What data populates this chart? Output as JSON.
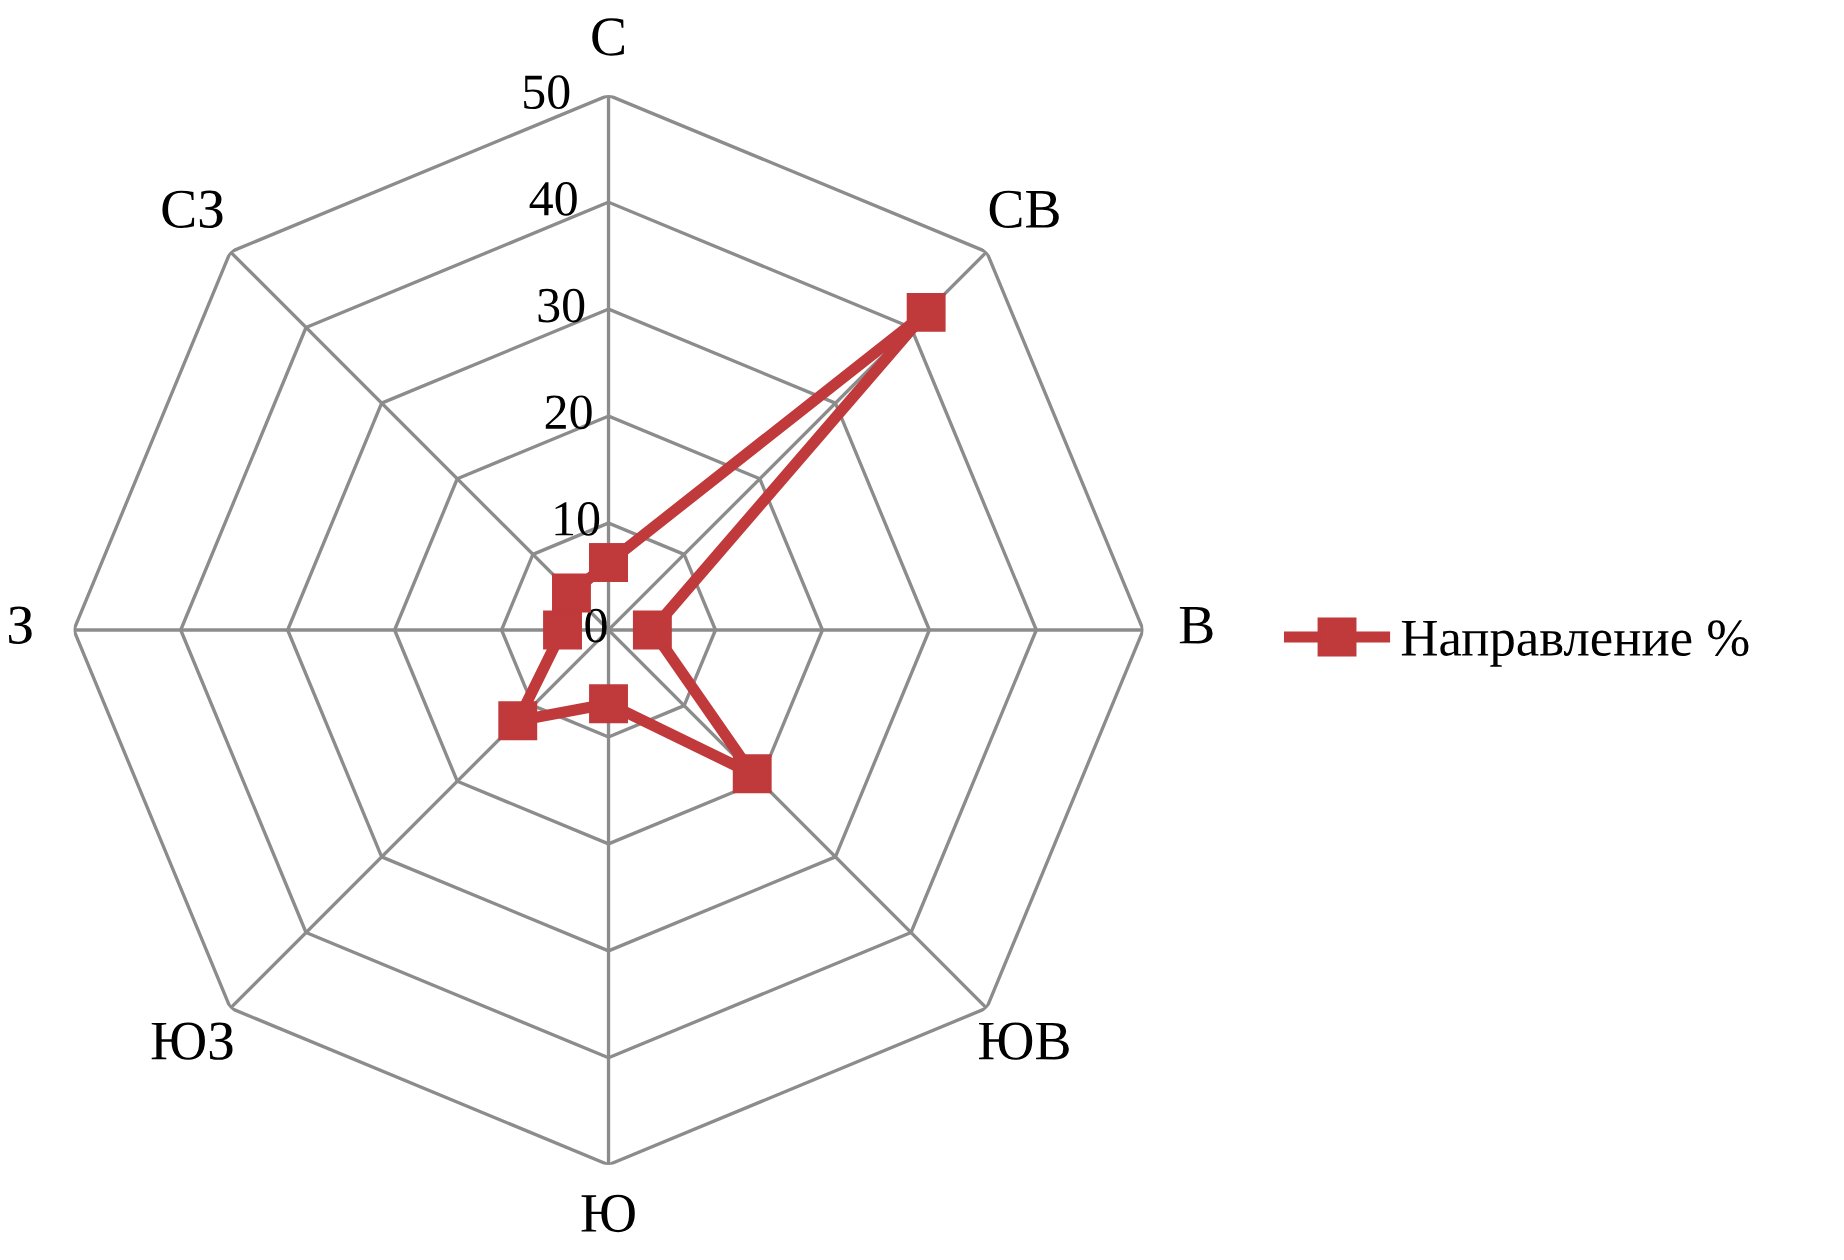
{
  "chart_data": {
    "type": "radar",
    "categories": [
      "С",
      "СВ",
      "В",
      "ЮВ",
      "Ю",
      "ЮЗ",
      "З",
      "СЗ"
    ],
    "series": [
      {
        "name": "Направление %",
        "color": "#c0393b",
        "values": [
          6.3,
          42,
          4.1,
          19,
          6.9,
          12,
          4.3,
          4.9
        ]
      }
    ],
    "ylim": [
      0,
      50
    ],
    "yticks": [
      0,
      10,
      20,
      30,
      40,
      50
    ],
    "grid": true,
    "legend": "right",
    "marker": "square"
  }
}
